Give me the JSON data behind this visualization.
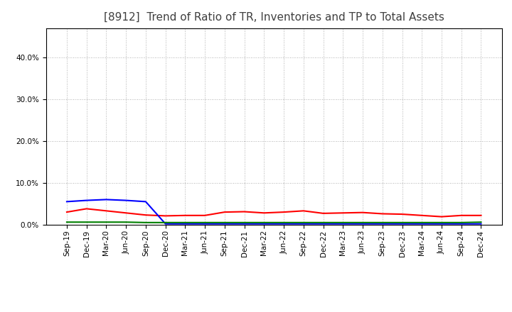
{
  "title": "[8912]  Trend of Ratio of TR, Inventories and TP to Total Assets",
  "x_labels": [
    "Sep-19",
    "Dec-19",
    "Mar-20",
    "Jun-20",
    "Sep-20",
    "Dec-20",
    "Mar-21",
    "Jun-21",
    "Sep-21",
    "Dec-21",
    "Mar-22",
    "Jun-22",
    "Sep-22",
    "Dec-22",
    "Mar-23",
    "Jun-23",
    "Sep-23",
    "Dec-23",
    "Mar-24",
    "Jun-24",
    "Sep-24",
    "Dec-24"
  ],
  "trade_receivables": [
    0.03,
    0.038,
    0.033,
    0.028,
    0.023,
    0.021,
    0.022,
    0.022,
    0.03,
    0.031,
    0.028,
    0.03,
    0.033,
    0.027,
    0.028,
    0.029,
    0.026,
    0.025,
    0.022,
    0.019,
    0.022,
    0.022
  ],
  "inventories": [
    0.055,
    0.058,
    0.06,
    0.058,
    0.055,
    0.002,
    0.002,
    0.002,
    0.002,
    0.002,
    0.002,
    0.002,
    0.002,
    0.002,
    0.002,
    0.002,
    0.002,
    0.002,
    0.002,
    0.002,
    0.002,
    0.002
  ],
  "trade_payables": [
    0.006,
    0.006,
    0.006,
    0.006,
    0.005,
    0.005,
    0.005,
    0.005,
    0.005,
    0.005,
    0.005,
    0.005,
    0.005,
    0.005,
    0.005,
    0.005,
    0.005,
    0.005,
    0.005,
    0.005,
    0.005,
    0.006
  ],
  "color_tr": "#FF0000",
  "color_inv": "#0000FF",
  "color_tp": "#008000",
  "ylim": [
    0.0,
    0.47
  ],
  "yticks": [
    0.0,
    0.1,
    0.2,
    0.3,
    0.4
  ],
  "background_color": "#FFFFFF",
  "plot_bg_color": "#FFFFFF",
  "grid_color": "#999999",
  "title_color": "#404040",
  "title_fontsize": 11,
  "legend_fontsize": 9,
  "tick_fontsize": 7.5
}
